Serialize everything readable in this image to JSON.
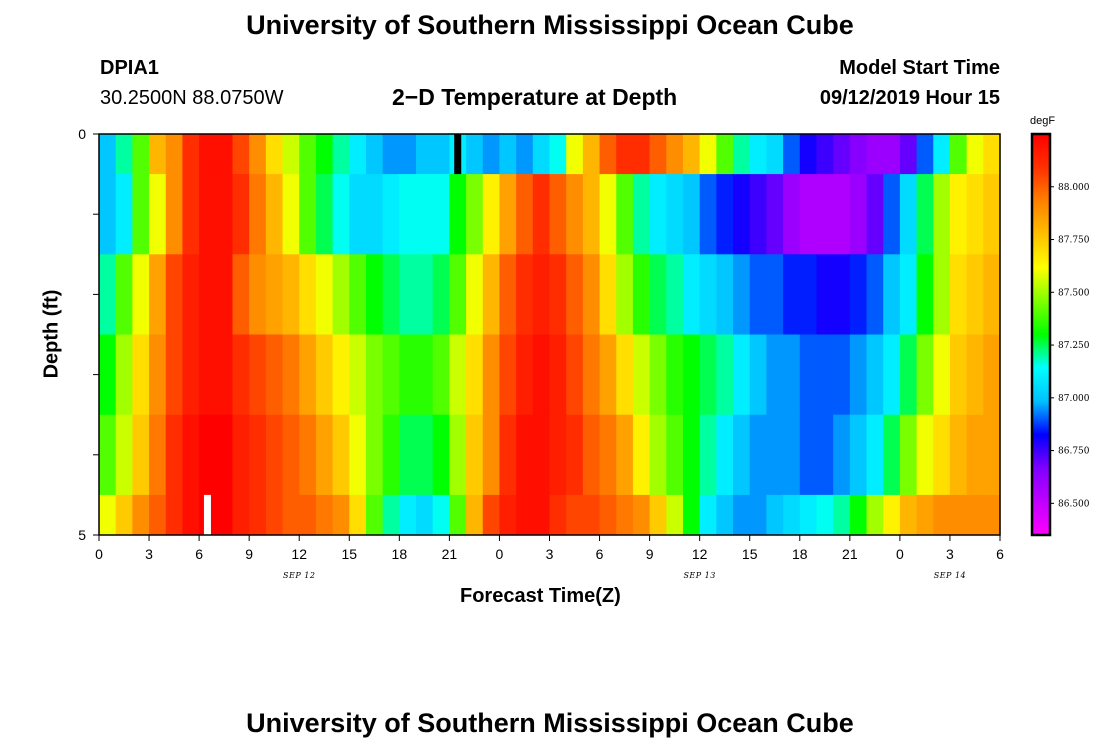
{
  "header": {
    "top_title": "University of Southern Mississippi Ocean Cube",
    "bottom_title": "University of Southern Mississippi Ocean Cube",
    "station_id": "DPIA1",
    "station_coords": "30.2500N 88.0750W",
    "start_label": "Model Start Time",
    "start_value": "09/12/2019 Hour 15"
  },
  "chart_data": {
    "type": "heatmap",
    "title": "2−D Temperature at Depth",
    "xlabel": "Forecast Time(Z)",
    "ylabel": "Depth (ft)",
    "x_hours_range": [
      0,
      54
    ],
    "x_tick_labels": [
      "0",
      "3",
      "6",
      "9",
      "12",
      "15",
      "18",
      "21",
      "0",
      "3",
      "6",
      "9",
      "12",
      "15",
      "18",
      "21",
      "0",
      "3",
      "6"
    ],
    "date_labels": [
      {
        "text": "SEP 12",
        "hour": 12
      },
      {
        "text": "SEP 13",
        "hour": 36
      },
      {
        "text": "SEP 14",
        "hour": 51
      }
    ],
    "y_tick_labels": [
      {
        "value": 0,
        "text": "0"
      },
      {
        "value": 1,
        "text": ""
      },
      {
        "value": 2,
        "text": ""
      },
      {
        "value": 3,
        "text": ""
      },
      {
        "value": 4,
        "text": ""
      },
      {
        "value": 5,
        "text": "5"
      }
    ],
    "ylim": [
      0,
      5
    ],
    "depth_rows": [
      0.25,
      1.0,
      2.0,
      3.0,
      4.0,
      4.75
    ],
    "colorbar": {
      "unit": "degF",
      "min": 86.35,
      "max": 88.25,
      "tick_labels": [
        "86.500",
        "86.750",
        "87.000",
        "87.250",
        "87.500",
        "87.750",
        "88.000"
      ],
      "tick_values": [
        86.5,
        86.75,
        87.0,
        87.25,
        87.5,
        87.75,
        88.0
      ],
      "colors": [
        "#ff00ff",
        "#c000ff",
        "#8000ff",
        "#0000ff",
        "#00c0ff",
        "#00ffff",
        "#00ff00",
        "#80ff00",
        "#ffff00",
        "#ffc000",
        "#ff8000",
        "#ff3000",
        "#ff0000"
      ]
    },
    "series": [
      {
        "depth": 0.25,
        "values": [
          87.0,
          87.2,
          87.4,
          87.8,
          87.9,
          88.1,
          88.2,
          88.2,
          88.05,
          87.9,
          87.7,
          87.55,
          87.4,
          87.3,
          87.2,
          87.1,
          87.0,
          86.95,
          86.95,
          87.0,
          87.0,
          87.1,
          87.0,
          86.95,
          87.0,
          86.95,
          87.05,
          87.15,
          87.6,
          87.8,
          88.0,
          88.1,
          88.1,
          88.0,
          87.9,
          87.8,
          87.6,
          87.4,
          87.2,
          87.1,
          87.05,
          86.9,
          86.8,
          86.75,
          86.7,
          86.65,
          86.6,
          86.6,
          86.7,
          86.9,
          87.1,
          87.4,
          87.6,
          87.7
        ]
      },
      {
        "depth": 1.0,
        "values": [
          87.0,
          87.1,
          87.4,
          87.6,
          87.9,
          88.1,
          88.2,
          88.2,
          88.1,
          87.95,
          87.8,
          87.6,
          87.4,
          87.25,
          87.15,
          87.05,
          87.05,
          87.1,
          87.15,
          87.15,
          87.15,
          87.3,
          87.45,
          87.65,
          87.85,
          88.0,
          88.1,
          88.0,
          87.9,
          87.8,
          87.6,
          87.4,
          87.2,
          87.1,
          87.05,
          87.0,
          86.9,
          86.85,
          86.8,
          86.75,
          86.7,
          86.6,
          86.55,
          86.55,
          86.55,
          86.6,
          86.7,
          86.9,
          87.05,
          87.25,
          87.5,
          87.65,
          87.7,
          87.75
        ]
      },
      {
        "depth": 2.0,
        "values": [
          87.2,
          87.4,
          87.6,
          87.85,
          88.05,
          88.15,
          88.2,
          88.2,
          88.0,
          87.9,
          87.85,
          87.8,
          87.7,
          87.6,
          87.5,
          87.4,
          87.3,
          87.25,
          87.2,
          87.2,
          87.25,
          87.4,
          87.6,
          87.8,
          88.0,
          88.1,
          88.15,
          88.1,
          88.0,
          87.9,
          87.7,
          87.5,
          87.35,
          87.25,
          87.2,
          87.1,
          87.05,
          87.0,
          86.95,
          86.9,
          86.9,
          86.85,
          86.85,
          86.8,
          86.8,
          86.85,
          86.9,
          87.0,
          87.1,
          87.3,
          87.5,
          87.7,
          87.75,
          87.8
        ]
      },
      {
        "depth": 3.0,
        "values": [
          87.3,
          87.5,
          87.7,
          87.9,
          88.05,
          88.15,
          88.2,
          88.2,
          88.1,
          88.05,
          88.0,
          87.95,
          87.85,
          87.75,
          87.65,
          87.55,
          87.45,
          87.4,
          87.35,
          87.35,
          87.4,
          87.55,
          87.7,
          87.9,
          88.05,
          88.15,
          88.2,
          88.15,
          88.05,
          87.95,
          87.85,
          87.7,
          87.55,
          87.45,
          87.35,
          87.3,
          87.25,
          87.2,
          87.1,
          87.0,
          86.95,
          86.95,
          86.9,
          86.9,
          86.9,
          86.95,
          87.0,
          87.1,
          87.25,
          87.45,
          87.6,
          87.75,
          87.8,
          87.85
        ]
      },
      {
        "depth": 4.0,
        "values": [
          87.4,
          87.55,
          87.75,
          87.95,
          88.1,
          88.2,
          88.25,
          88.25,
          88.15,
          88.1,
          88.05,
          88.0,
          87.95,
          87.85,
          87.75,
          87.6,
          87.45,
          87.35,
          87.25,
          87.25,
          87.3,
          87.5,
          87.75,
          87.9,
          88.1,
          88.2,
          88.2,
          88.15,
          88.1,
          88.0,
          87.95,
          87.85,
          87.65,
          87.5,
          87.4,
          87.3,
          87.2,
          87.1,
          87.0,
          86.95,
          86.95,
          86.95,
          86.9,
          86.9,
          86.95,
          87.0,
          87.1,
          87.25,
          87.45,
          87.6,
          87.7,
          87.8,
          87.85,
          87.85
        ]
      },
      {
        "depth": 4.75,
        "values": [
          87.6,
          87.75,
          87.9,
          88.0,
          88.1,
          88.2,
          88.25,
          88.25,
          88.15,
          88.1,
          88.05,
          88.0,
          88.0,
          87.95,
          87.9,
          87.7,
          87.4,
          87.2,
          87.1,
          87.05,
          87.15,
          87.4,
          87.8,
          88.05,
          88.15,
          88.2,
          88.2,
          88.1,
          88.05,
          88.05,
          88.0,
          87.95,
          87.9,
          87.75,
          87.55,
          87.3,
          87.1,
          87.0,
          86.95,
          86.95,
          87.0,
          87.05,
          87.1,
          87.15,
          87.2,
          87.3,
          87.5,
          87.65,
          87.8,
          87.85,
          87.9,
          87.9,
          87.9,
          87.9
        ]
      }
    ],
    "markers": [
      {
        "hour": 6.5,
        "depth_from": 4.5,
        "depth_to": 5.0,
        "color": "#ffffff"
      },
      {
        "hour": 21.5,
        "depth_from": 0.0,
        "depth_to": 0.5,
        "color": "#000000"
      }
    ]
  }
}
